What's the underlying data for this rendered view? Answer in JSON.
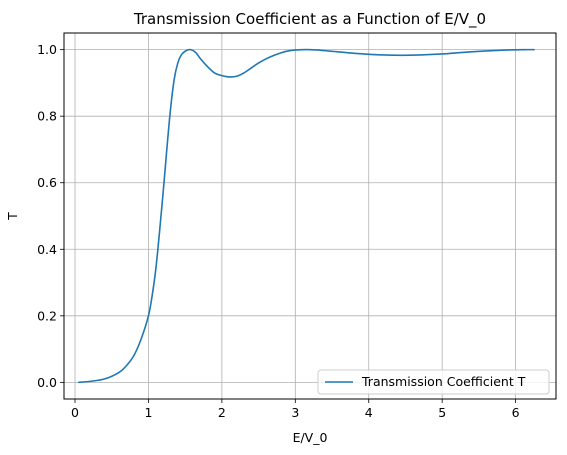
{
  "chart_data": {
    "type": "line",
    "title": "Transmission Coefficient as a Function of E/V_0",
    "xlabel": "E/V_0",
    "ylabel": "T",
    "xlim": [
      -0.15,
      6.55
    ],
    "ylim": [
      -0.05,
      1.05
    ],
    "grid": true,
    "legend_position": "lower-right",
    "x_ticks": [
      0,
      1,
      2,
      3,
      4,
      5,
      6
    ],
    "y_ticks": [
      0.0,
      0.2,
      0.4,
      0.6,
      0.8,
      1.0
    ],
    "x_tick_labels": [
      "0",
      "1",
      "2",
      "3",
      "4",
      "5",
      "6"
    ],
    "y_tick_labels": [
      "0.0",
      "0.2",
      "0.4",
      "0.6",
      "0.8",
      "1.0"
    ],
    "series": [
      {
        "name": "Transmission Coefficient T",
        "color": "#1f77b4",
        "x": [
          0.05,
          0.2,
          0.4,
          0.6,
          0.7,
          0.8,
          0.9,
          1.0,
          1.05,
          1.1,
          1.15,
          1.2,
          1.25,
          1.3,
          1.35,
          1.4,
          1.45,
          1.5,
          1.55,
          1.6,
          1.65,
          1.7,
          1.8,
          1.9,
          2.0,
          2.1,
          2.2,
          2.3,
          2.4,
          2.5,
          2.6,
          2.7,
          2.8,
          2.9,
          3.0,
          3.1,
          3.2,
          3.3,
          3.4,
          3.5,
          3.6,
          3.8,
          4.0,
          4.2,
          4.45,
          4.7,
          5.0,
          5.3,
          5.6,
          5.9,
          6.1,
          6.25
        ],
        "y": [
          0.0,
          0.003,
          0.01,
          0.03,
          0.05,
          0.08,
          0.13,
          0.2,
          0.26,
          0.34,
          0.45,
          0.57,
          0.7,
          0.82,
          0.91,
          0.96,
          0.985,
          0.995,
          1.0,
          0.998,
          0.99,
          0.975,
          0.95,
          0.93,
          0.922,
          0.918,
          0.92,
          0.93,
          0.945,
          0.96,
          0.972,
          0.982,
          0.99,
          0.996,
          0.999,
          1.0,
          1.0,
          0.999,
          0.997,
          0.995,
          0.993,
          0.989,
          0.986,
          0.984,
          0.983,
          0.984,
          0.987,
          0.992,
          0.996,
          0.999,
          1.0,
          1.0
        ]
      }
    ]
  }
}
